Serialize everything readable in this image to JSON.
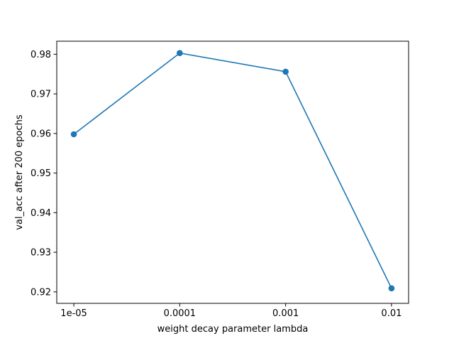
{
  "chart_data": {
    "type": "line",
    "title": "",
    "xlabel": "weight decay parameter lambda",
    "ylabel": "val_acc after 200 epochs",
    "x_scale": "log",
    "x": [
      "1e-05",
      "0.0001",
      "0.001",
      "0.01"
    ],
    "x_values": [
      1e-05,
      0.0001,
      0.001,
      0.01
    ],
    "xlim": [
      6.9e-06,
      0.0145
    ],
    "ylim": [
      0.9171,
      0.9833
    ],
    "yticks": [
      "0.92",
      "0.93",
      "0.94",
      "0.95",
      "0.96",
      "0.97",
      "0.98"
    ],
    "ytick_values": [
      0.92,
      0.93,
      0.94,
      0.95,
      0.96,
      0.97,
      0.98
    ],
    "grid": false,
    "legend": "none",
    "series": [
      {
        "values": [
          0.9598,
          0.9803,
          0.9756,
          0.9209
        ],
        "color": "#1f77b4",
        "marker": "circle"
      }
    ]
  }
}
